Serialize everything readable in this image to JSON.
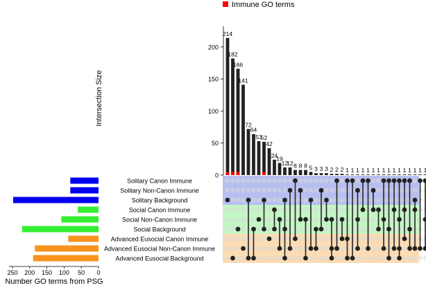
{
  "chart_data": {
    "type": "upset",
    "legend": {
      "label": "Immune GO terms",
      "color": "#ff0000"
    },
    "ylabel": "Intersection Size",
    "xlabel_sets": "Number GO terms from PSG",
    "intersection_axis": {
      "ylim": [
        0,
        230
      ],
      "ticks": [
        0,
        50,
        100,
        150,
        200
      ]
    },
    "set_size_axis": {
      "xlim": [
        0,
        260
      ],
      "ticks": [
        250,
        200,
        150,
        100,
        50,
        0
      ]
    },
    "bar_color": "#222222",
    "sets": [
      {
        "name": "Solitary Canon Immune",
        "size": 82,
        "color": "#0000ee",
        "band": "#b8bff0"
      },
      {
        "name": "Solitary Non-Canon Immune",
        "size": 82,
        "color": "#0000ee",
        "band": "#b8bff0"
      },
      {
        "name": "Solitary Background",
        "size": 248,
        "color": "#0000ee",
        "band": "#b8bff0"
      },
      {
        "name": "Social Canon Immune",
        "size": 60,
        "color": "#33ee33",
        "band": "#c4f5c4"
      },
      {
        "name": "Social Non-Canon Immune",
        "size": 108,
        "color": "#33ee33",
        "band": "#c4f5c4"
      },
      {
        "name": "Social Background",
        "size": 222,
        "color": "#33ee33",
        "band": "#c4f5c4"
      },
      {
        "name": "Advanced Eusocial Canon Immune",
        "size": 88,
        "color": "#f7941d",
        "band": "#fbdcb4"
      },
      {
        "name": "Advanced Eusocial Non-Canon Immune",
        "size": 185,
        "color": "#f7941d",
        "band": "#fbdcb4"
      },
      {
        "name": "Advanced Eusocial Background",
        "size": 190,
        "color": "#f7941d",
        "band": "#fbdcb4"
      }
    ],
    "intersections": [
      {
        "size": 214,
        "label": "214",
        "immune": 5,
        "sets": [
          2
        ]
      },
      {
        "size": 182,
        "label": "182",
        "immune": 5,
        "sets": [
          8
        ]
      },
      {
        "size": 166,
        "label": "166",
        "immune": 5,
        "sets": [
          5
        ]
      },
      {
        "size": 141,
        "label": "141",
        "immune": 0,
        "sets": [
          7
        ]
      },
      {
        "size": 72,
        "label": "72",
        "immune": 0,
        "sets": [
          2,
          8
        ]
      },
      {
        "size": 64,
        "label": "64",
        "immune": 0,
        "sets": [
          5,
          8
        ]
      },
      {
        "size": 53,
        "label": "53",
        "immune": 0,
        "sets": [
          4
        ]
      },
      {
        "size": 52,
        "label": "52",
        "immune": 5,
        "sets": [
          2,
          5
        ]
      },
      {
        "size": 42,
        "label": "42",
        "immune": 0,
        "sets": [
          6
        ]
      },
      {
        "size": 24,
        "label": "24",
        "immune": 0,
        "sets": [
          3,
          5
        ]
      },
      {
        "size": 19,
        "label": "19",
        "immune": 0,
        "sets": [
          4,
          7
        ]
      },
      {
        "size": 12,
        "label": "12",
        "immune": 0,
        "sets": [
          2,
          5,
          8
        ]
      },
      {
        "size": 12,
        "label": "12",
        "immune": 0,
        "sets": [
          1,
          7
        ]
      },
      {
        "size": 8,
        "label": "8",
        "immune": 0,
        "sets": [
          0,
          6
        ]
      },
      {
        "size": 8,
        "label": "8",
        "immune": 0,
        "sets": [
          1,
          4
        ]
      },
      {
        "size": 8,
        "label": "8",
        "immune": 0,
        "sets": [
          4,
          8
        ]
      },
      {
        "size": 5,
        "label": "5",
        "immune": 0,
        "sets": [
          2,
          7
        ]
      },
      {
        "size": 3,
        "label": "3",
        "immune": 0,
        "sets": [
          5,
          7
        ]
      },
      {
        "size": 3,
        "label": "3",
        "immune": 0,
        "sets": [
          1,
          5
        ]
      },
      {
        "size": 3,
        "label": "3",
        "immune": 0,
        "sets": [
          2,
          4
        ]
      },
      {
        "size": 2,
        "label": "2",
        "immune": 0,
        "sets": [
          4,
          7,
          8
        ]
      },
      {
        "size": 2,
        "label": "2",
        "immune": 0,
        "sets": [
          0,
          7
        ]
      },
      {
        "size": 2,
        "label": "2",
        "immune": 0,
        "sets": [
          4,
          6
        ]
      },
      {
        "size": 1,
        "label": "1",
        "immune": 0,
        "sets": [
          0,
          6,
          8
        ]
      },
      {
        "size": 1,
        "label": "1",
        "immune": 0,
        "sets": [
          0,
          8
        ]
      },
      {
        "size": 1,
        "label": "1",
        "immune": 0,
        "sets": [
          1,
          4,
          7
        ]
      },
      {
        "size": 1,
        "label": "1",
        "immune": 0,
        "sets": [
          0,
          3
        ]
      },
      {
        "size": 1,
        "label": "1",
        "immune": 0,
        "sets": [
          0,
          7
        ]
      },
      {
        "size": 1,
        "label": "1",
        "immune": 0,
        "sets": [
          1,
          3
        ]
      },
      {
        "size": 1,
        "label": "1",
        "immune": 0,
        "sets": [
          3,
          5
        ]
      },
      {
        "size": 1,
        "label": "1",
        "immune": 0,
        "sets": [
          0,
          4,
          7
        ]
      },
      {
        "size": 1,
        "label": "1",
        "immune": 0,
        "sets": [
          0,
          5,
          8
        ]
      },
      {
        "size": 1,
        "label": "1",
        "immune": 0,
        "sets": [
          0,
          3,
          7
        ]
      },
      {
        "size": 1,
        "label": "1",
        "immune": 0,
        "sets": [
          0,
          4,
          7,
          8
        ]
      },
      {
        "size": 1,
        "label": "1",
        "immune": 0,
        "sets": [
          0,
          3,
          6
        ]
      },
      {
        "size": 1,
        "label": "1",
        "immune": 0,
        "sets": [
          0,
          5,
          7
        ]
      },
      {
        "size": 1,
        "label": "1",
        "immune": 0,
        "sets": [
          2,
          3,
          7
        ]
      },
      {
        "size": 1,
        "label": "1",
        "immune": 0,
        "sets": [
          0,
          7
        ]
      },
      {
        "size": 1,
        "label": "1",
        "immune": 0,
        "sets": [
          0,
          4,
          7
        ]
      }
    ]
  }
}
